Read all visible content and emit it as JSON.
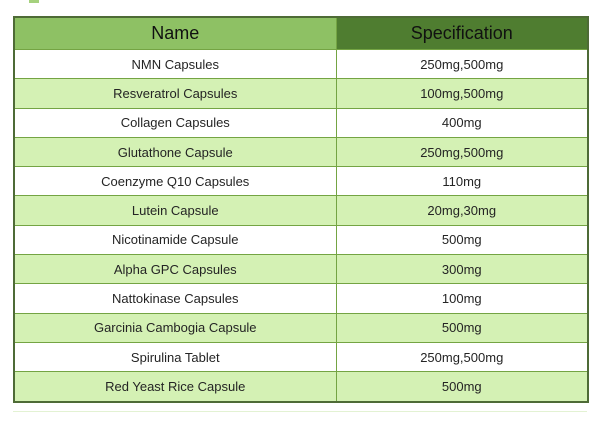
{
  "decor": {
    "top_speck_color": "#a5d17d",
    "underline_color": "#e3f2d3"
  },
  "theme": {
    "header_name_bg": "#8ec164",
    "header_specification_bg": "#4f7d30",
    "row_alt_bg": "#d4f1b4",
    "row_bg": "#ffffff",
    "grid_border_color": "#74a443",
    "outer_border_color": "#4e6b36",
    "text_color": "#242424"
  },
  "table": {
    "headers": [
      "Name",
      "Specification"
    ],
    "rows": [
      {
        "name": "NMN Capsules",
        "specification": "250mg,500mg"
      },
      {
        "name": "Resveratrol Capsules",
        "specification": "100mg,500mg"
      },
      {
        "name": "Collagen Capsules",
        "specification": "400mg"
      },
      {
        "name": "Glutathone Capsule",
        "specification": "250mg,500mg"
      },
      {
        "name": "Coenzyme Q10 Capsules",
        "specification": "110mg"
      },
      {
        "name": "Lutein Capsule",
        "specification": "20mg,30mg"
      },
      {
        "name": "Nicotinamide Capsule",
        "specification": "500mg"
      },
      {
        "name": "Alpha GPC Capsules",
        "specification": "300mg"
      },
      {
        "name": "Nattokinase Capsules",
        "specification": "100mg"
      },
      {
        "name": "Garcinia Cambogia Capsule",
        "specification": "500mg"
      },
      {
        "name": "Spirulina Tablet",
        "specification": "250mg,500mg"
      },
      {
        "name": "Red Yeast Rice Capsule",
        "specification": "500mg"
      }
    ]
  }
}
